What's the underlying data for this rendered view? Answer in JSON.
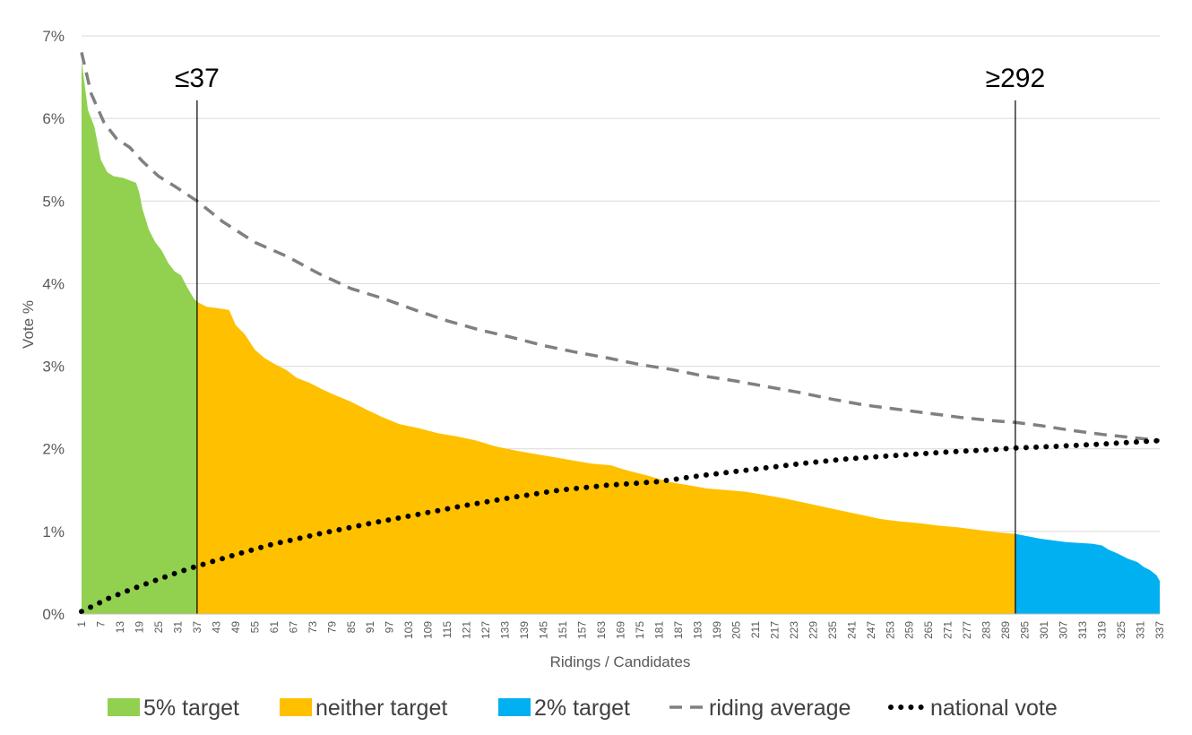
{
  "chart_data": {
    "type": "area",
    "title": "",
    "xlabel": "Ridings / Candidates",
    "ylabel": "Vote %",
    "xlim": [
      1,
      337
    ],
    "ylim": [
      0,
      7
    ],
    "y_ticks": [
      "0%",
      "1%",
      "2%",
      "3%",
      "4%",
      "5%",
      "6%",
      "7%"
    ],
    "x_ticks": [
      1,
      7,
      13,
      19,
      25,
      31,
      37,
      43,
      49,
      55,
      61,
      67,
      73,
      79,
      85,
      91,
      97,
      103,
      109,
      115,
      121,
      127,
      133,
      139,
      145,
      151,
      157,
      163,
      169,
      175,
      181,
      187,
      193,
      199,
      205,
      211,
      217,
      223,
      229,
      235,
      241,
      247,
      253,
      259,
      265,
      271,
      277,
      283,
      289,
      295,
      301,
      307,
      313,
      319,
      325,
      331,
      337
    ],
    "grid": true,
    "legend_position": "bottom",
    "thresholds": [
      {
        "x": 37,
        "label": "≤37"
      },
      {
        "x": 292,
        "label": "≥292"
      }
    ],
    "vote_curve": [
      [
        1,
        6.7
      ],
      [
        3,
        6.1
      ],
      [
        5,
        5.9
      ],
      [
        7,
        5.5
      ],
      [
        9,
        5.35
      ],
      [
        11,
        5.3
      ],
      [
        14,
        5.28
      ],
      [
        16,
        5.25
      ],
      [
        18,
        5.22
      ],
      [
        19,
        5.1
      ],
      [
        20,
        4.9
      ],
      [
        22,
        4.65
      ],
      [
        24,
        4.5
      ],
      [
        26,
        4.4
      ],
      [
        28,
        4.25
      ],
      [
        30,
        4.15
      ],
      [
        32,
        4.1
      ],
      [
        34,
        3.95
      ],
      [
        36,
        3.82
      ],
      [
        37,
        3.78
      ],
      [
        40,
        3.72
      ],
      [
        44,
        3.7
      ],
      [
        47,
        3.68
      ],
      [
        49,
        3.5
      ],
      [
        52,
        3.38
      ],
      [
        55,
        3.2
      ],
      [
        58,
        3.1
      ],
      [
        61,
        3.03
      ],
      [
        65,
        2.95
      ],
      [
        68,
        2.86
      ],
      [
        72,
        2.8
      ],
      [
        76,
        2.72
      ],
      [
        80,
        2.65
      ],
      [
        85,
        2.57
      ],
      [
        90,
        2.47
      ],
      [
        95,
        2.38
      ],
      [
        100,
        2.3
      ],
      [
        106,
        2.25
      ],
      [
        112,
        2.19
      ],
      [
        118,
        2.15
      ],
      [
        124,
        2.1
      ],
      [
        130,
        2.03
      ],
      [
        136,
        1.98
      ],
      [
        142,
        1.94
      ],
      [
        148,
        1.9
      ],
      [
        154,
        1.86
      ],
      [
        160,
        1.82
      ],
      [
        166,
        1.8
      ],
      [
        170,
        1.75
      ],
      [
        174,
        1.71
      ],
      [
        178,
        1.67
      ],
      [
        184,
        1.6
      ],
      [
        190,
        1.56
      ],
      [
        196,
        1.52
      ],
      [
        202,
        1.5
      ],
      [
        208,
        1.48
      ],
      [
        214,
        1.44
      ],
      [
        220,
        1.4
      ],
      [
        226,
        1.35
      ],
      [
        232,
        1.3
      ],
      [
        238,
        1.25
      ],
      [
        244,
        1.2
      ],
      [
        250,
        1.15
      ],
      [
        256,
        1.12
      ],
      [
        262,
        1.1
      ],
      [
        268,
        1.07
      ],
      [
        274,
        1.05
      ],
      [
        280,
        1.02
      ],
      [
        286,
        0.99
      ],
      [
        292,
        0.97
      ],
      [
        296,
        0.94
      ],
      [
        300,
        0.91
      ],
      [
        304,
        0.89
      ],
      [
        308,
        0.87
      ],
      [
        312,
        0.86
      ],
      [
        316,
        0.85
      ],
      [
        319,
        0.83
      ],
      [
        321,
        0.78
      ],
      [
        324,
        0.73
      ],
      [
        327,
        0.67
      ],
      [
        330,
        0.63
      ],
      [
        332,
        0.57
      ],
      [
        334,
        0.53
      ],
      [
        336,
        0.47
      ],
      [
        337,
        0.4
      ]
    ],
    "series": [
      {
        "name": "5% target",
        "range": [
          1,
          37
        ],
        "color": "#92D050",
        "style": "area"
      },
      {
        "name": "neither target",
        "range": [
          37,
          292
        ],
        "color": "#FFC000",
        "style": "area"
      },
      {
        "name": "2% target",
        "range": [
          292,
          337
        ],
        "color": "#00B0F0",
        "style": "area"
      },
      {
        "name": "riding average",
        "color": "#808080",
        "style": "dashed",
        "points": [
          [
            1,
            6.8
          ],
          [
            4,
            6.3
          ],
          [
            8,
            5.95
          ],
          [
            12,
            5.75
          ],
          [
            16,
            5.65
          ],
          [
            20,
            5.48
          ],
          [
            25,
            5.3
          ],
          [
            30,
            5.18
          ],
          [
            37,
            5.0
          ],
          [
            45,
            4.75
          ],
          [
            55,
            4.5
          ],
          [
            65,
            4.33
          ],
          [
            75,
            4.12
          ],
          [
            85,
            3.94
          ],
          [
            95,
            3.82
          ],
          [
            105,
            3.68
          ],
          [
            115,
            3.55
          ],
          [
            125,
            3.44
          ],
          [
            135,
            3.35
          ],
          [
            145,
            3.25
          ],
          [
            155,
            3.17
          ],
          [
            165,
            3.1
          ],
          [
            175,
            3.02
          ],
          [
            185,
            2.96
          ],
          [
            195,
            2.88
          ],
          [
            205,
            2.82
          ],
          [
            215,
            2.75
          ],
          [
            225,
            2.68
          ],
          [
            235,
            2.6
          ],
          [
            245,
            2.53
          ],
          [
            255,
            2.48
          ],
          [
            265,
            2.43
          ],
          [
            275,
            2.38
          ],
          [
            285,
            2.34
          ],
          [
            292,
            2.32
          ],
          [
            300,
            2.28
          ],
          [
            310,
            2.22
          ],
          [
            320,
            2.17
          ],
          [
            330,
            2.13
          ],
          [
            337,
            2.1
          ]
        ]
      },
      {
        "name": "national vote",
        "color": "#000000",
        "style": "dotted",
        "points": [
          [
            1,
            0.03
          ],
          [
            10,
            0.2
          ],
          [
            20,
            0.35
          ],
          [
            30,
            0.49
          ],
          [
            37,
            0.58
          ],
          [
            50,
            0.73
          ],
          [
            60,
            0.84
          ],
          [
            75,
            0.97
          ],
          [
            90,
            1.09
          ],
          [
            105,
            1.2
          ],
          [
            120,
            1.31
          ],
          [
            135,
            1.41
          ],
          [
            150,
            1.5
          ],
          [
            165,
            1.56
          ],
          [
            180,
            1.6
          ],
          [
            195,
            1.68
          ],
          [
            210,
            1.75
          ],
          [
            225,
            1.82
          ],
          [
            240,
            1.88
          ],
          [
            255,
            1.92
          ],
          [
            270,
            1.96
          ],
          [
            285,
            1.99
          ],
          [
            292,
            2.01
          ],
          [
            305,
            2.03
          ],
          [
            320,
            2.06
          ],
          [
            337,
            2.1
          ]
        ]
      }
    ]
  }
}
